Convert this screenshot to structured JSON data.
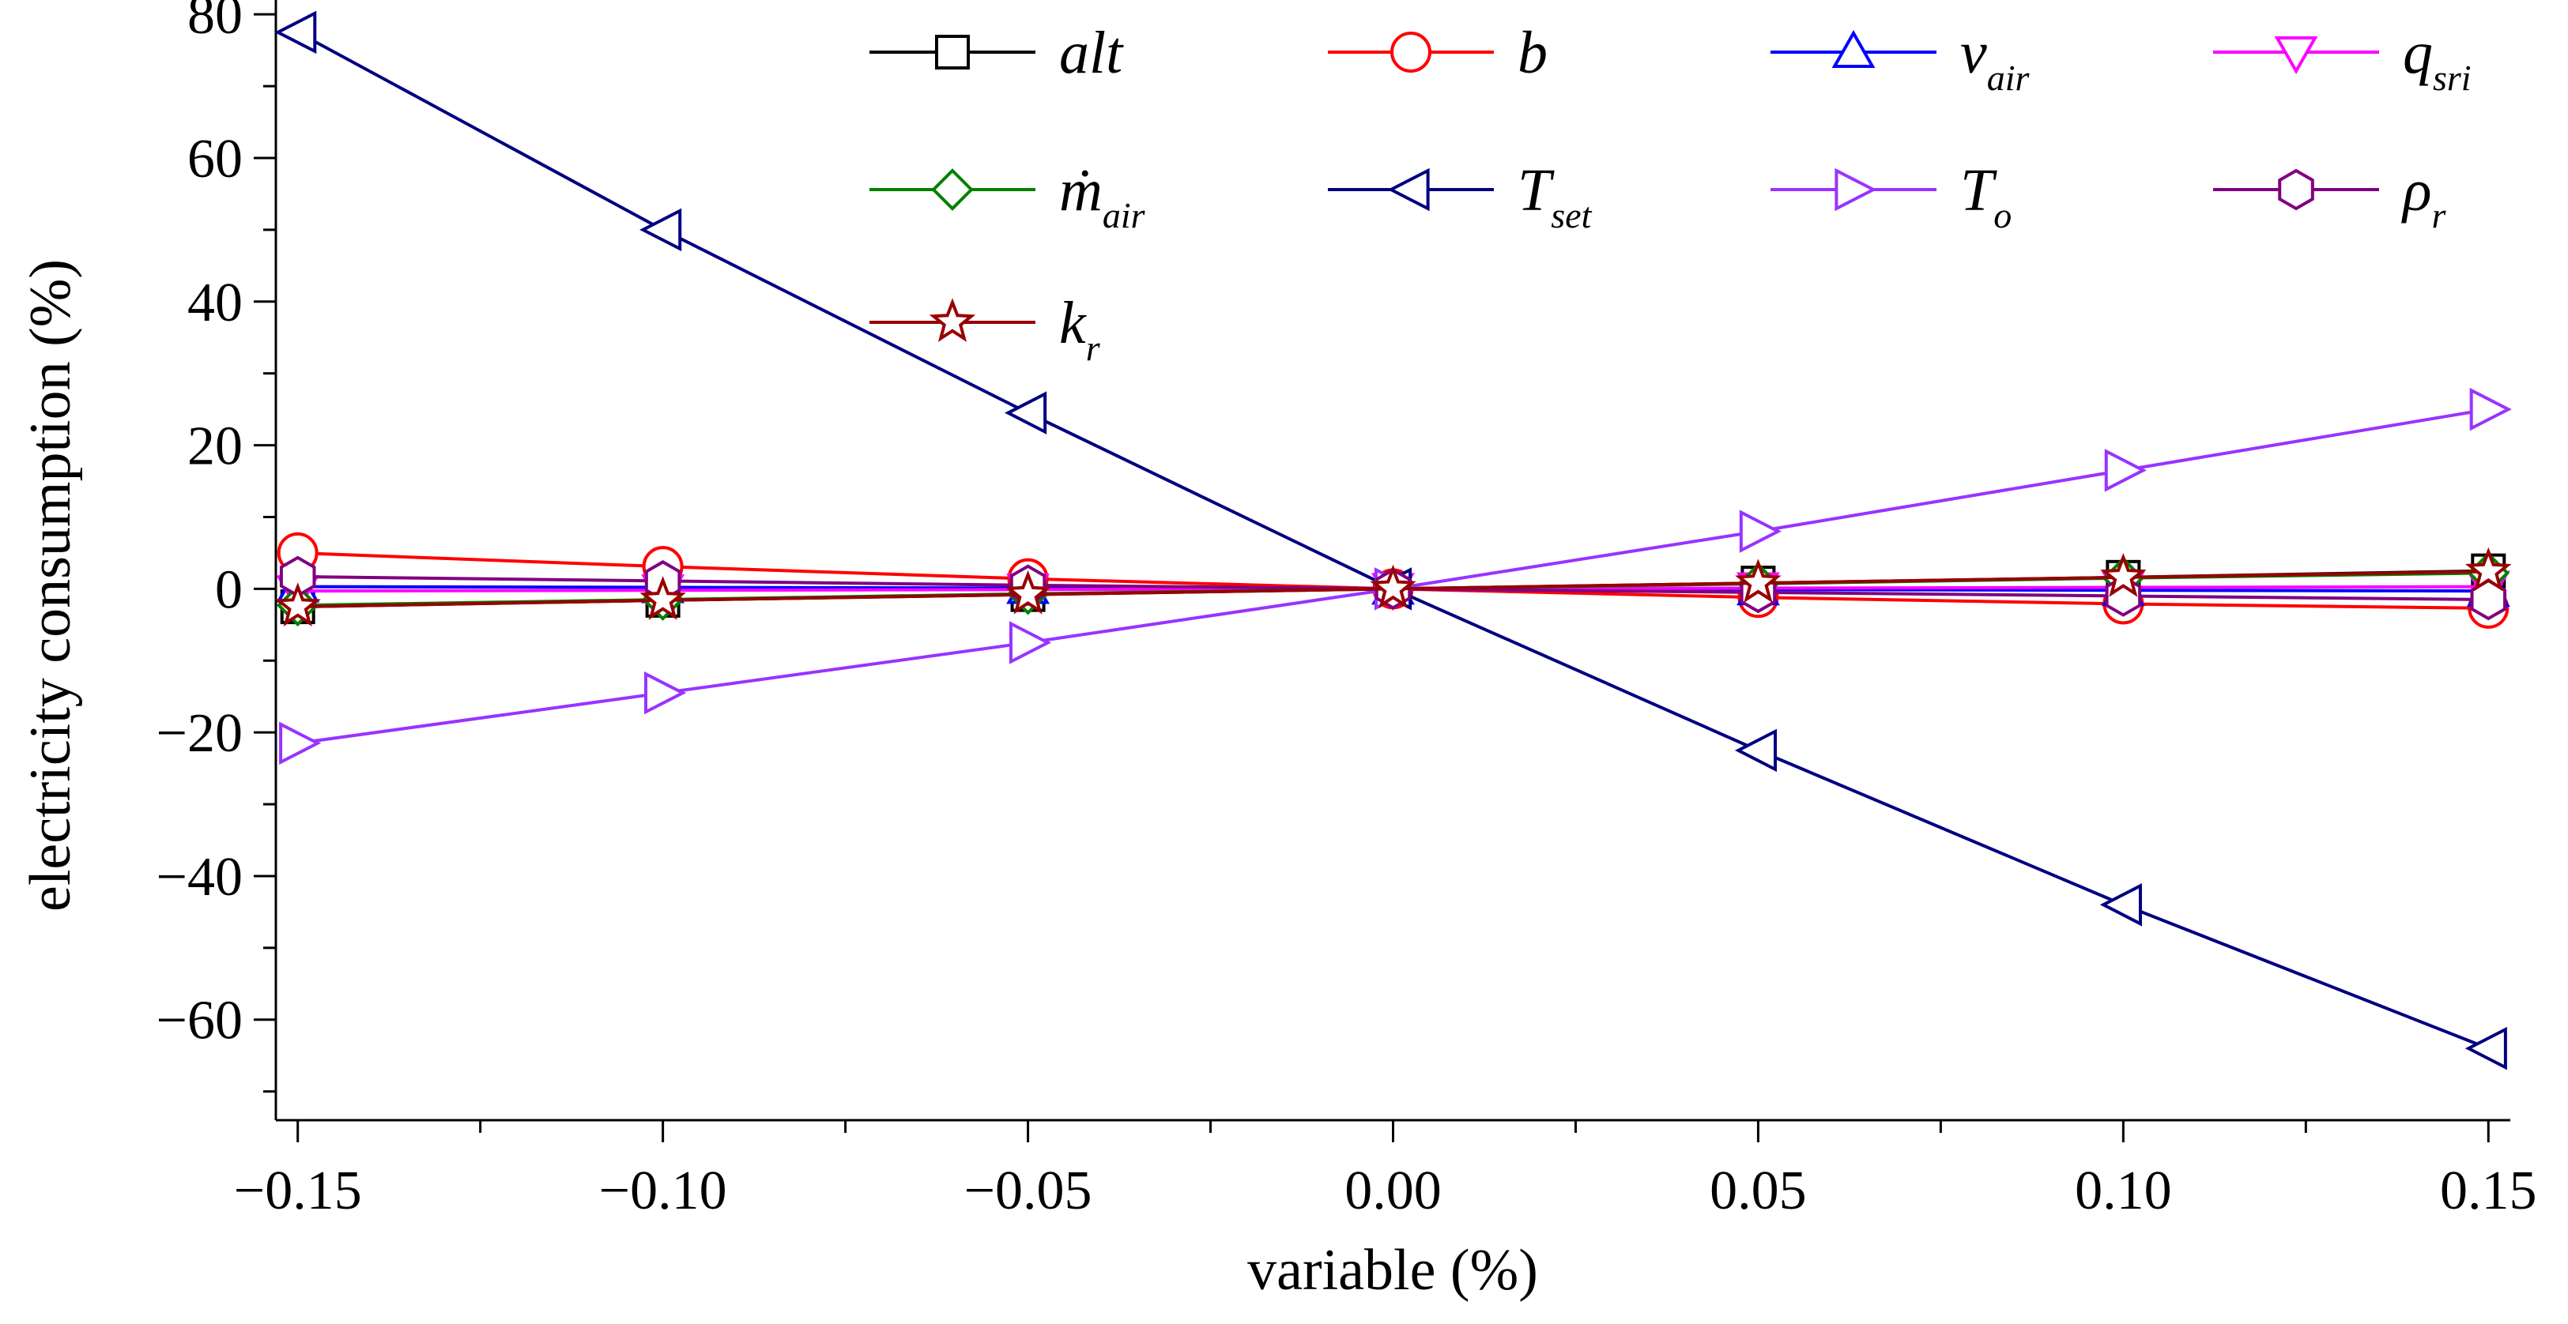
{
  "chart_data": {
    "type": "line",
    "title": "",
    "xlabel": "variable (%)",
    "ylabel": "electricity consumption (%)",
    "xlim": [
      -0.153,
      0.153
    ],
    "ylim": [
      -74,
      82
    ],
    "x": [
      -0.15,
      -0.1,
      -0.05,
      0.0,
      0.05,
      0.1,
      0.15
    ],
    "x_ticks": [
      -0.15,
      -0.1,
      -0.05,
      0.0,
      0.05,
      0.1,
      0.15
    ],
    "x_tick_labels": [
      "−0.15",
      "−0.10",
      "−0.05",
      "0.00",
      "0.05",
      "0.10",
      "0.15"
    ],
    "x_minor_ticks": [
      -0.125,
      -0.075,
      -0.025,
      0.025,
      0.075,
      0.125
    ],
    "y_ticks": [
      -60,
      -40,
      -20,
      0,
      20,
      40,
      60,
      80
    ],
    "y_tick_labels": [
      "−60",
      "−40",
      "−20",
      "0",
      "20",
      "40",
      "60",
      "80"
    ],
    "y_minor_ticks": [
      -70,
      -50,
      -30,
      -10,
      10,
      30,
      50,
      70
    ],
    "grid": false,
    "legend_position": "top",
    "series": [
      {
        "key": "alt",
        "name": "alt",
        "sub": "",
        "marker": "square",
        "color": "#000000",
        "values": [
          -2.5,
          -1.6,
          -0.8,
          0,
          0.8,
          1.6,
          2.5
        ]
      },
      {
        "key": "b",
        "name": "b",
        "sub": "",
        "marker": "circle",
        "color": "#ff0000",
        "values": [
          5.0,
          3.1,
          1.4,
          0,
          -1.2,
          -2.1,
          -2.7
        ]
      },
      {
        "key": "v_air",
        "name": "v",
        "sub": "air",
        "marker": "triangle",
        "color": "#0000ff",
        "values": [
          0.3,
          0.2,
          0.1,
          0,
          -0.1,
          -0.2,
          -0.3
        ]
      },
      {
        "key": "q_sri",
        "name": "q",
        "sub": "sri",
        "marker": "triangle-down",
        "color": "#ff00ff",
        "values": [
          -0.3,
          -0.2,
          -0.1,
          0,
          0.1,
          0.2,
          0.3
        ]
      },
      {
        "key": "m_air",
        "name": "ṁ",
        "sub": "air",
        "marker": "diamond",
        "color": "#008000",
        "values": [
          -2.3,
          -1.5,
          -0.7,
          0,
          0.7,
          1.5,
          2.2
        ]
      },
      {
        "key": "T_set",
        "name": "T",
        "sub": "set",
        "marker": "triangle-left",
        "color": "#000080",
        "values": [
          77.5,
          50.0,
          24.5,
          0,
          -22.5,
          -44.0,
          -64.0
        ]
      },
      {
        "key": "T_o",
        "name": "T",
        "sub": "o",
        "marker": "triangle-right",
        "color": "#9933ff",
        "values": [
          -21.5,
          -14.5,
          -7.5,
          0,
          8.0,
          16.5,
          25.0
        ]
      },
      {
        "key": "rho_r",
        "name": "ρ",
        "sub": "r",
        "marker": "hexagon",
        "color": "#800080",
        "values": [
          1.7,
          1.1,
          0.5,
          0,
          -0.5,
          -1.0,
          -1.5
        ]
      },
      {
        "key": "k_r",
        "name": "k",
        "sub": "r",
        "marker": "star",
        "color": "#990000",
        "values": [
          -2.5,
          -1.6,
          -0.8,
          0,
          0.8,
          1.6,
          2.4
        ]
      }
    ]
  }
}
